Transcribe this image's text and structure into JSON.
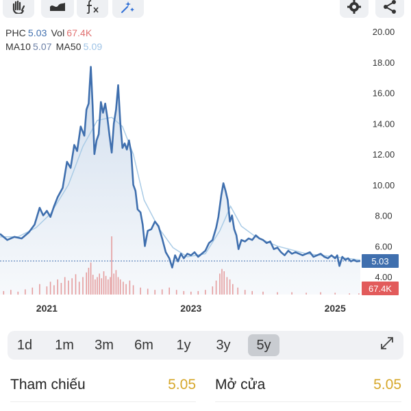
{
  "toolbar": {
    "buttons": [
      {
        "icon": "hand-icon"
      },
      {
        "icon": "area-chart-icon"
      },
      {
        "icon": "indicator-fx-icon"
      },
      {
        "icon": "magic-draw-icon"
      }
    ],
    "settings_icon": "gear-icon",
    "share_icon": "share-icon"
  },
  "info": {
    "symbol": "PHC",
    "price": "5.03",
    "vol_label": "Vol",
    "vol": "67.4K",
    "ma10_label": "MA10",
    "ma10": "5.07",
    "ma50_label": "MA50",
    "ma50": "5.09"
  },
  "colors": {
    "price_line": "#3f6fae",
    "area_fill_top": "#c9d8ea",
    "ma10": "#8fb3d9",
    "ma50": "#a9cbe6",
    "volume": "#e28c8c",
    "price_badge": "#3f6fae",
    "vol_badge": "#e25b5b",
    "stat_value": "#d6a72a"
  },
  "chart_data": {
    "type": "line",
    "series_name": "PHC",
    "ylim": [
      4.0,
      20.0
    ],
    "y_ticks": [
      "20.00",
      "18.00",
      "16.00",
      "14.00",
      "12.00",
      "10.00",
      "8.00",
      "6.00",
      "4.00"
    ],
    "x_ticks": [
      "2021",
      "2023",
      "2025"
    ],
    "x_tick_positions": [
      2021.0,
      2023.0,
      2025.0
    ],
    "xlim": [
      2020.35,
      2025.35
    ],
    "last_price": "5.03",
    "last_volume": "67.4K",
    "grid": false,
    "price_points": [
      [
        2020.35,
        6.8
      ],
      [
        2020.45,
        6.4
      ],
      [
        2020.55,
        6.6
      ],
      [
        2020.65,
        6.5
      ],
      [
        2020.75,
        6.9
      ],
      [
        2020.83,
        7.4
      ],
      [
        2020.9,
        8.5
      ],
      [
        2020.95,
        8.0
      ],
      [
        2021.0,
        8.3
      ],
      [
        2021.05,
        7.9
      ],
      [
        2021.1,
        8.6
      ],
      [
        2021.15,
        9.2
      ],
      [
        2021.22,
        9.8
      ],
      [
        2021.28,
        11.5
      ],
      [
        2021.33,
        11.1
      ],
      [
        2021.38,
        12.6
      ],
      [
        2021.42,
        12.2
      ],
      [
        2021.47,
        13.8
      ],
      [
        2021.52,
        13.2
      ],
      [
        2021.55,
        14.9
      ],
      [
        2021.58,
        15.3
      ],
      [
        2021.61,
        17.7
      ],
      [
        2021.635,
        15.2
      ],
      [
        2021.66,
        12.0
      ],
      [
        2021.69,
        12.9
      ],
      [
        2021.72,
        13.3
      ],
      [
        2021.75,
        15.4
      ],
      [
        2021.78,
        14.7
      ],
      [
        2021.81,
        15.3
      ],
      [
        2021.84,
        14.4
      ],
      [
        2021.87,
        13.2
      ],
      [
        2021.9,
        12.1
      ],
      [
        2021.93,
        14.0
      ],
      [
        2021.96,
        14.9
      ],
      [
        2021.99,
        16.5
      ],
      [
        2022.02,
        14.0
      ],
      [
        2022.05,
        12.4
      ],
      [
        2022.08,
        12.7
      ],
      [
        2022.11,
        12.3
      ],
      [
        2022.14,
        12.9
      ],
      [
        2022.17,
        12.1
      ],
      [
        2022.2,
        10.0
      ],
      [
        2022.23,
        9.6
      ],
      [
        2022.26,
        8.4
      ],
      [
        2022.3,
        8.2
      ],
      [
        2022.33,
        7.4
      ],
      [
        2022.36,
        6.0
      ],
      [
        2022.4,
        7.0
      ],
      [
        2022.45,
        7.1
      ],
      [
        2022.5,
        7.6
      ],
      [
        2022.55,
        7.3
      ],
      [
        2022.6,
        6.5
      ],
      [
        2022.65,
        5.6
      ],
      [
        2022.7,
        5.2
      ],
      [
        2022.74,
        4.6
      ],
      [
        2022.78,
        5.4
      ],
      [
        2022.82,
        5.0
      ],
      [
        2022.86,
        5.5
      ],
      [
        2022.9,
        5.2
      ],
      [
        2022.95,
        5.5
      ],
      [
        2023.0,
        5.4
      ],
      [
        2023.05,
        5.6
      ],
      [
        2023.1,
        5.3
      ],
      [
        2023.15,
        5.5
      ],
      [
        2023.2,
        5.7
      ],
      [
        2023.25,
        6.2
      ],
      [
        2023.3,
        6.4
      ],
      [
        2023.35,
        7.2
      ],
      [
        2023.38,
        7.9
      ],
      [
        2023.42,
        9.3
      ],
      [
        2023.45,
        10.1
      ],
      [
        2023.48,
        9.6
      ],
      [
        2023.51,
        9.0
      ],
      [
        2023.54,
        7.6
      ],
      [
        2023.57,
        8.0
      ],
      [
        2023.6,
        7.1
      ],
      [
        2023.63,
        6.7
      ],
      [
        2023.66,
        5.8
      ],
      [
        2023.7,
        6.4
      ],
      [
        2023.75,
        6.3
      ],
      [
        2023.8,
        6.5
      ],
      [
        2023.85,
        6.4
      ],
      [
        2023.9,
        6.7
      ],
      [
        2023.95,
        6.5
      ],
      [
        2024.0,
        6.4
      ],
      [
        2024.05,
        6.2
      ],
      [
        2024.1,
        6.3
      ],
      [
        2024.15,
        5.8
      ],
      [
        2024.2,
        5.9
      ],
      [
        2024.25,
        5.6
      ],
      [
        2024.3,
        5.4
      ],
      [
        2024.35,
        5.7
      ],
      [
        2024.4,
        5.5
      ],
      [
        2024.45,
        5.6
      ],
      [
        2024.5,
        5.5
      ],
      [
        2024.55,
        5.4
      ],
      [
        2024.6,
        5.5
      ],
      [
        2024.65,
        5.6
      ],
      [
        2024.7,
        5.3
      ],
      [
        2024.75,
        5.4
      ],
      [
        2024.8,
        5.5
      ],
      [
        2024.85,
        5.3
      ],
      [
        2024.9,
        5.2
      ],
      [
        2024.95,
        5.4
      ],
      [
        2025.0,
        5.2
      ],
      [
        2025.03,
        5.4
      ],
      [
        2025.06,
        4.7
      ],
      [
        2025.1,
        5.3
      ],
      [
        2025.14,
        5.1
      ],
      [
        2025.18,
        5.2
      ],
      [
        2025.22,
        5.0
      ],
      [
        2025.26,
        5.1
      ],
      [
        2025.3,
        5.0
      ],
      [
        2025.35,
        5.03
      ]
    ],
    "ma50_points": [
      [
        2020.35,
        6.6
      ],
      [
        2020.6,
        6.6
      ],
      [
        2020.85,
        7.2
      ],
      [
        2021.05,
        8.1
      ],
      [
        2021.3,
        10.0
      ],
      [
        2021.5,
        12.5
      ],
      [
        2021.7,
        14.2
      ],
      [
        2021.9,
        14.4
      ],
      [
        2022.05,
        13.8
      ],
      [
        2022.2,
        12.0
      ],
      [
        2022.35,
        9.0
      ],
      [
        2022.55,
        7.2
      ],
      [
        2022.75,
        5.9
      ],
      [
        2022.95,
        5.3
      ],
      [
        2023.2,
        5.5
      ],
      [
        2023.4,
        7.0
      ],
      [
        2023.55,
        8.6
      ],
      [
        2023.7,
        7.3
      ],
      [
        2023.9,
        6.6
      ],
      [
        2024.2,
        6.0
      ],
      [
        2024.6,
        5.5
      ],
      [
        2025.0,
        5.3
      ],
      [
        2025.35,
        5.09
      ]
    ],
    "volume_max": 100,
    "volume_bars": [
      [
        2020.4,
        6
      ],
      [
        2020.5,
        8
      ],
      [
        2020.6,
        5
      ],
      [
        2020.7,
        9
      ],
      [
        2020.8,
        12
      ],
      [
        2020.9,
        18
      ],
      [
        2021.0,
        14
      ],
      [
        2021.05,
        22
      ],
      [
        2021.1,
        16
      ],
      [
        2021.15,
        26
      ],
      [
        2021.2,
        20
      ],
      [
        2021.25,
        30
      ],
      [
        2021.3,
        24
      ],
      [
        2021.35,
        28
      ],
      [
        2021.4,
        35
      ],
      [
        2021.45,
        22
      ],
      [
        2021.5,
        30
      ],
      [
        2021.55,
        38
      ],
      [
        2021.58,
        46
      ],
      [
        2021.61,
        55
      ],
      [
        2021.64,
        34
      ],
      [
        2021.67,
        26
      ],
      [
        2021.7,
        30
      ],
      [
        2021.73,
        36
      ],
      [
        2021.76,
        28
      ],
      [
        2021.79,
        40
      ],
      [
        2021.82,
        32
      ],
      [
        2021.85,
        26
      ],
      [
        2021.88,
        30
      ],
      [
        2021.9,
        100
      ],
      [
        2021.93,
        36
      ],
      [
        2021.96,
        42
      ],
      [
        2021.99,
        30
      ],
      [
        2022.02,
        26
      ],
      [
        2022.06,
        22
      ],
      [
        2022.1,
        18
      ],
      [
        2022.15,
        24
      ],
      [
        2022.2,
        16
      ],
      [
        2022.3,
        12
      ],
      [
        2022.4,
        10
      ],
      [
        2022.5,
        8
      ],
      [
        2022.6,
        9
      ],
      [
        2022.7,
        12
      ],
      [
        2022.8,
        8
      ],
      [
        2022.9,
        6
      ],
      [
        2023.0,
        5
      ],
      [
        2023.1,
        6
      ],
      [
        2023.2,
        8
      ],
      [
        2023.3,
        14
      ],
      [
        2023.35,
        24
      ],
      [
        2023.4,
        36
      ],
      [
        2023.43,
        44
      ],
      [
        2023.46,
        40
      ],
      [
        2023.5,
        30
      ],
      [
        2023.54,
        26
      ],
      [
        2023.58,
        18
      ],
      [
        2023.65,
        12
      ],
      [
        2023.75,
        8
      ],
      [
        2023.85,
        6
      ],
      [
        2024.0,
        5
      ],
      [
        2024.2,
        4
      ],
      [
        2024.4,
        4
      ],
      [
        2024.6,
        3
      ],
      [
        2024.8,
        4
      ],
      [
        2025.0,
        3
      ],
      [
        2025.2,
        2
      ],
      [
        2025.33,
        2
      ]
    ]
  },
  "periods": {
    "items": [
      "1d",
      "1m",
      "3m",
      "6m",
      "1y",
      "3y",
      "5y"
    ],
    "active": "5y",
    "expand_icon": "expand-icon"
  },
  "stats": {
    "left_label": "Tham chiếu",
    "left_value": "5.05",
    "right_label": "Mở cửa",
    "right_value": "5.05"
  }
}
